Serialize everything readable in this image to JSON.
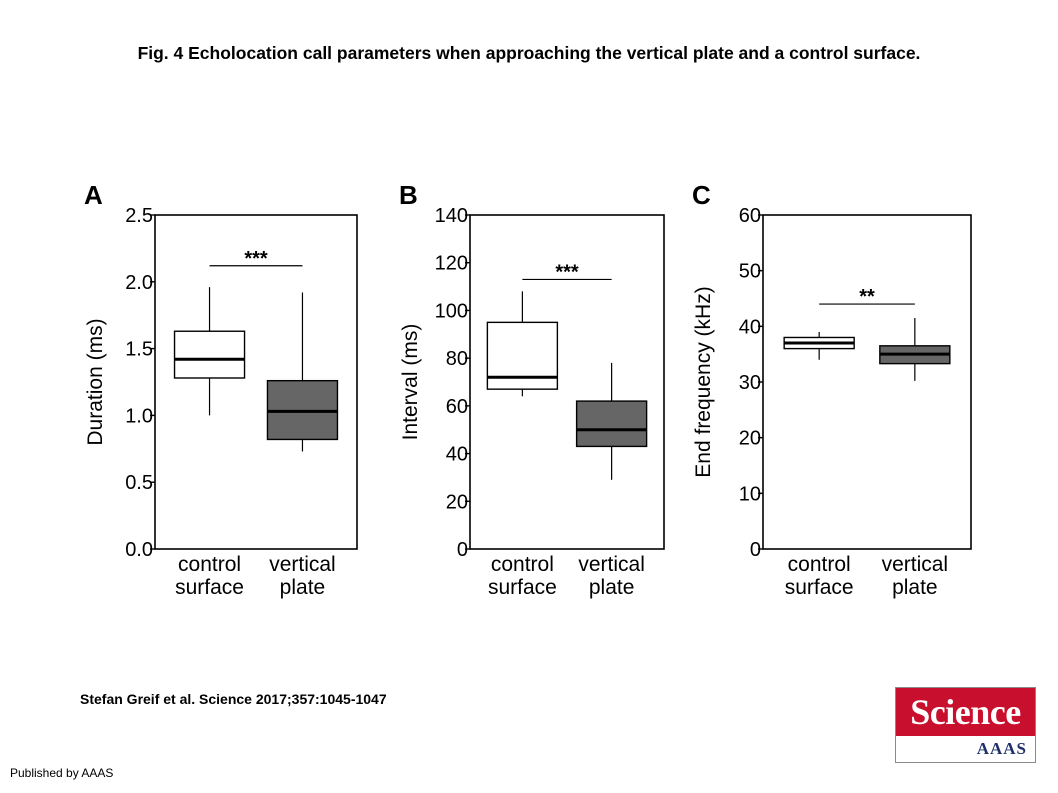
{
  "figure_title": "Fig. 4 Echolocation call parameters when approaching the vertical plate and a control surface.",
  "citation": "Stefan Greif et al. Science 2017;357:1045-1047",
  "publisher": "Published by AAAS",
  "logo": {
    "name": "Science",
    "sub": "AAAS"
  },
  "colors": {
    "control_fill": "#ffffff",
    "plate_fill": "#666666",
    "stroke": "#000000"
  },
  "chart_data": [
    {
      "type": "box",
      "panel": "A",
      "ylabel": "Duration (ms)",
      "ylim": [
        0,
        2.5
      ],
      "yticks": [
        "0.0",
        "0.5",
        "1.0",
        "1.5",
        "2.0",
        "2.5"
      ],
      "categories": [
        "control surface",
        "vertical plate"
      ],
      "category_lines": [
        [
          "control",
          "surface"
        ],
        [
          "vertical",
          "plate"
        ]
      ],
      "boxes": [
        {
          "min": 1.0,
          "q1": 1.28,
          "median": 1.42,
          "q3": 1.63,
          "max": 1.96
        },
        {
          "min": 0.73,
          "q1": 0.82,
          "median": 1.03,
          "q3": 1.26,
          "max": 1.92
        }
      ],
      "significance": "***",
      "sig_level": 2.12
    },
    {
      "type": "box",
      "panel": "B",
      "ylabel": "Interval (ms)",
      "ylim": [
        0,
        140
      ],
      "yticks": [
        "0",
        "20",
        "40",
        "60",
        "80",
        "100",
        "120",
        "140"
      ],
      "categories": [
        "control surface",
        "vertical plate"
      ],
      "category_lines": [
        [
          "control",
          "surface"
        ],
        [
          "vertical",
          "plate"
        ]
      ],
      "boxes": [
        {
          "min": 64,
          "q1": 67,
          "median": 72,
          "q3": 95,
          "max": 108
        },
        {
          "min": 29,
          "q1": 43,
          "median": 50,
          "q3": 62,
          "max": 78
        }
      ],
      "significance": "***",
      "sig_level": 113
    },
    {
      "type": "box",
      "panel": "C",
      "ylabel": "End frequency (kHz)",
      "ylim": [
        0,
        60
      ],
      "yticks": [
        "0",
        "10",
        "20",
        "30",
        "40",
        "50",
        "60"
      ],
      "categories": [
        "control surface",
        "vertical plate"
      ],
      "category_lines": [
        [
          "control",
          "surface"
        ],
        [
          "vertical",
          "plate"
        ]
      ],
      "boxes": [
        {
          "min": 34,
          "q1": 36,
          "median": 37,
          "q3": 38,
          "max": 39
        },
        {
          "min": 30.2,
          "q1": 33.3,
          "median": 35,
          "q3": 36.5,
          "max": 41.5
        }
      ],
      "significance": "**",
      "sig_level": 44
    }
  ]
}
